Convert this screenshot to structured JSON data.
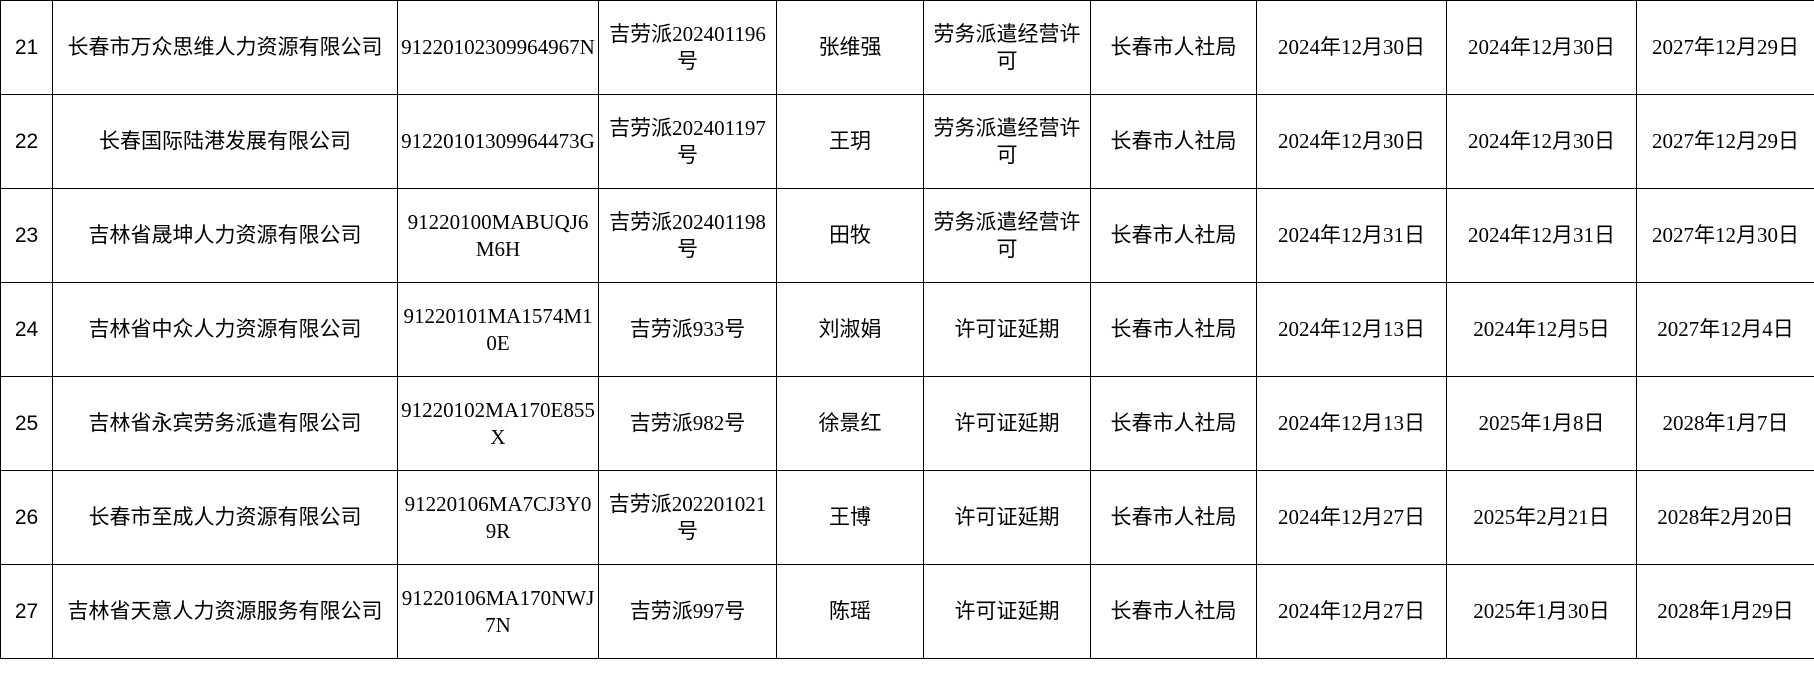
{
  "rows": [
    {
      "no": "21",
      "company": "长春市万众思维人力资源有限公司",
      "credit_code": "91220102309964967N",
      "license_no": "吉劳派202401196号",
      "person": "张维强",
      "item": "劳务派遣经营许可",
      "authority": "长春市人社局",
      "approval_date": "2024年12月30日",
      "valid_from": "2024年12月30日",
      "valid_to": "2027年12月29日"
    },
    {
      "no": "22",
      "company": "长春国际陆港发展有限公司",
      "credit_code": "91220101309964473G",
      "license_no": "吉劳派202401197号",
      "person": "王玥",
      "item": "劳务派遣经营许可",
      "authority": "长春市人社局",
      "approval_date": "2024年12月30日",
      "valid_from": "2024年12月30日",
      "valid_to": "2027年12月29日"
    },
    {
      "no": "23",
      "company": "吉林省晟坤人力资源有限公司",
      "credit_code": "91220100MABUQJ6M6H",
      "license_no": "吉劳派202401198号",
      "person": "田牧",
      "item": "劳务派遣经营许可",
      "authority": "长春市人社局",
      "approval_date": "2024年12月31日",
      "valid_from": "2024年12月31日",
      "valid_to": "2027年12月30日"
    },
    {
      "no": "24",
      "company": "吉林省中众人力资源有限公司",
      "credit_code": "91220101MA1574M10E",
      "license_no": "吉劳派933号",
      "person": "刘淑娟",
      "item": "许可证延期",
      "authority": "长春市人社局",
      "approval_date": "2024年12月13日",
      "valid_from": "2024年12月5日",
      "valid_to": "2027年12月4日"
    },
    {
      "no": "25",
      "company": "吉林省永宾劳务派遣有限公司",
      "credit_code": "91220102MA170E855X",
      "license_no": "吉劳派982号",
      "person": "徐景红",
      "item": "许可证延期",
      "authority": "长春市人社局",
      "approval_date": "2024年12月13日",
      "valid_from": "2025年1月8日",
      "valid_to": "2028年1月7日"
    },
    {
      "no": "26",
      "company": "长春市至成人力资源有限公司",
      "credit_code": "91220106MA7CJ3Y09R",
      "license_no": "吉劳派202201021号",
      "person": "王博",
      "item": "许可证延期",
      "authority": "长春市人社局",
      "approval_date": "2024年12月27日",
      "valid_from": "2025年2月21日",
      "valid_to": "2028年2月20日"
    },
    {
      "no": "27",
      "company": "吉林省天意人力资源服务有限公司",
      "credit_code": "91220106MA170NWJ7N",
      "license_no": "吉劳派997号",
      "person": "陈瑶",
      "item": "许可证延期",
      "authority": "长春市人社局",
      "approval_date": "2024年12月27日",
      "valid_from": "2025年1月30日",
      "valid_to": "2028年1月29日"
    }
  ]
}
